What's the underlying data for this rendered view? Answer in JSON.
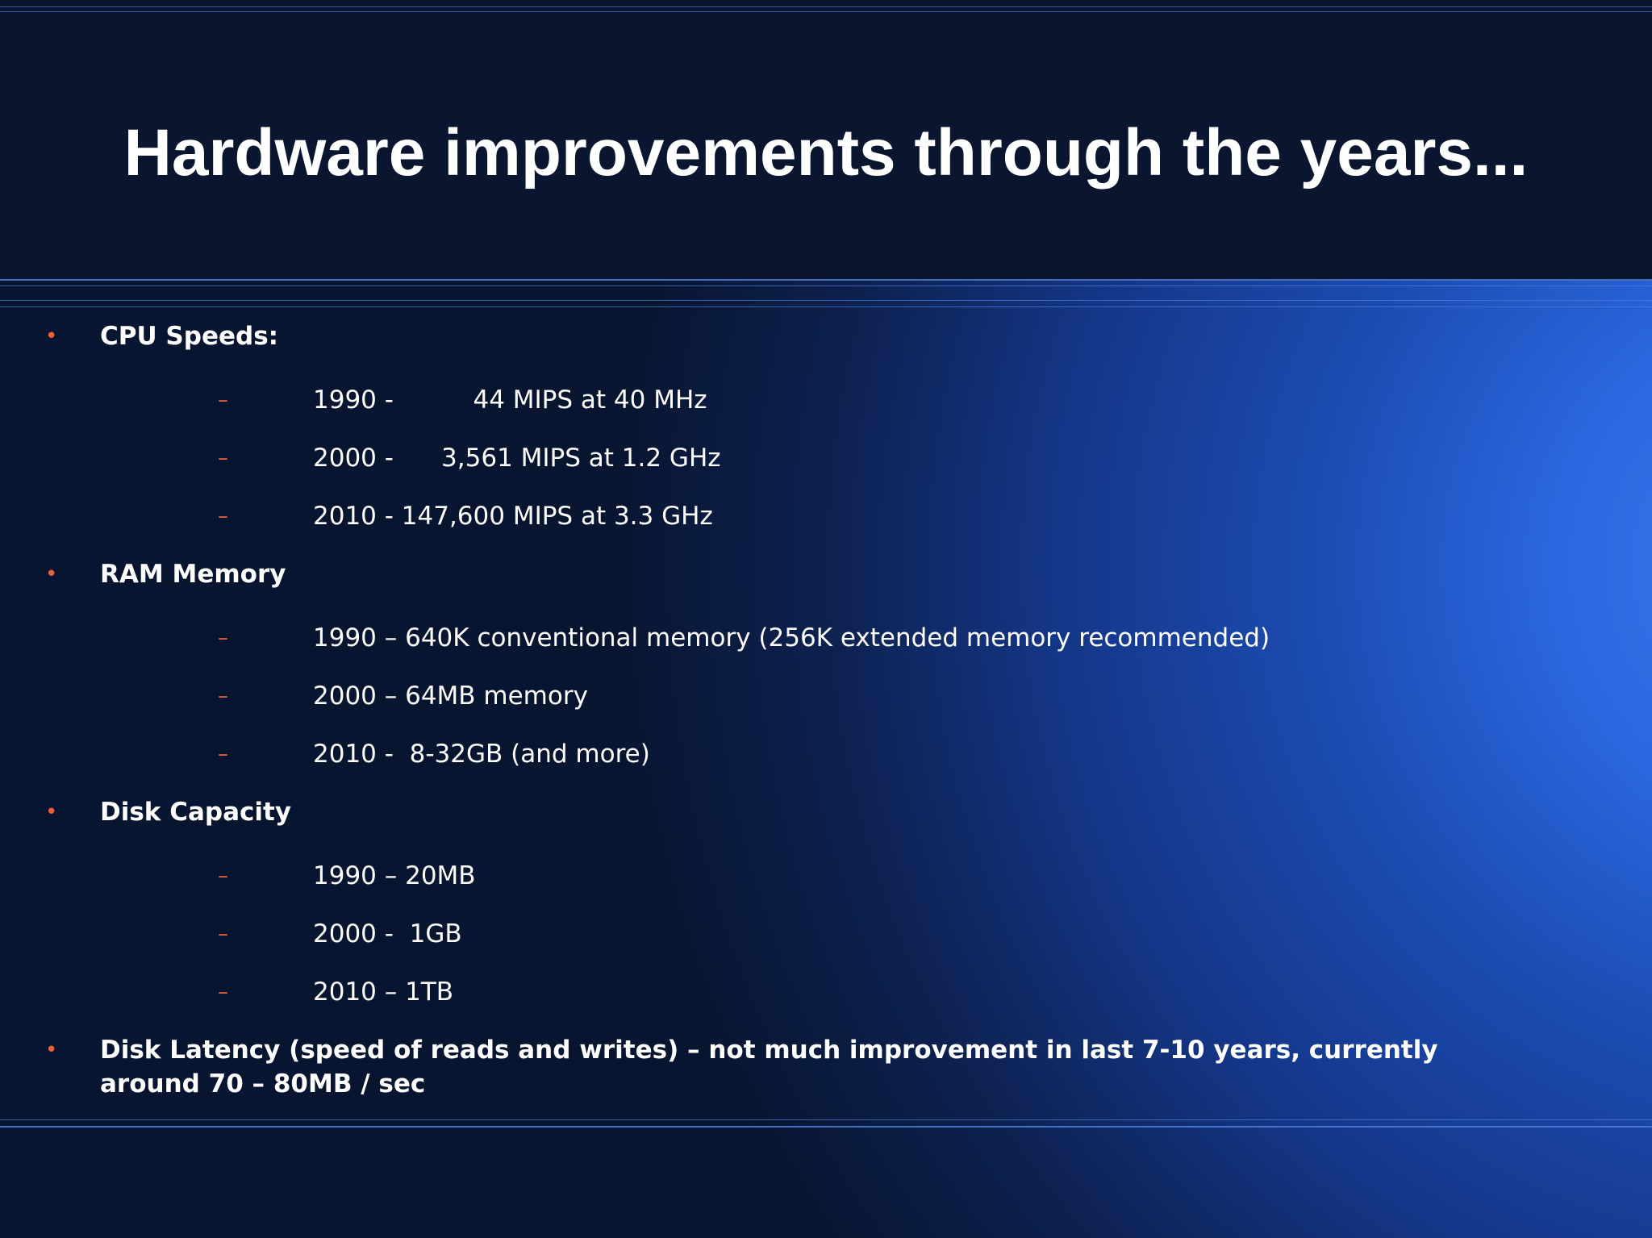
{
  "slide": {
    "title": "Hardware improvements through the years...",
    "bullet_symbol": "•",
    "dash_symbol": "–",
    "accent_color": "#e8603a",
    "sections": [
      {
        "heading": "CPU Speeds:",
        "items": [
          "1990 -          44 MIPS at 40 MHz",
          "2000 -      3,561 MIPS at 1.2 GHz",
          "2010 - 147,600 MIPS at 3.3 GHz"
        ]
      },
      {
        "heading": "RAM Memory",
        "items": [
          "1990 – 640K conventional memory (256K extended memory recommended)",
          "2000 – 64MB memory",
          "2010 -  8-32GB (and more)"
        ]
      },
      {
        "heading": "Disk Capacity",
        "items": [
          "1990 – 20MB",
          "2000 -  1GB",
          "2010 – 1TB"
        ]
      },
      {
        "heading": "Disk Latency (speed of reads and writes) – not much improvement in last 7-10 years, currently around 70 – 80MB / sec",
        "items": []
      }
    ]
  }
}
